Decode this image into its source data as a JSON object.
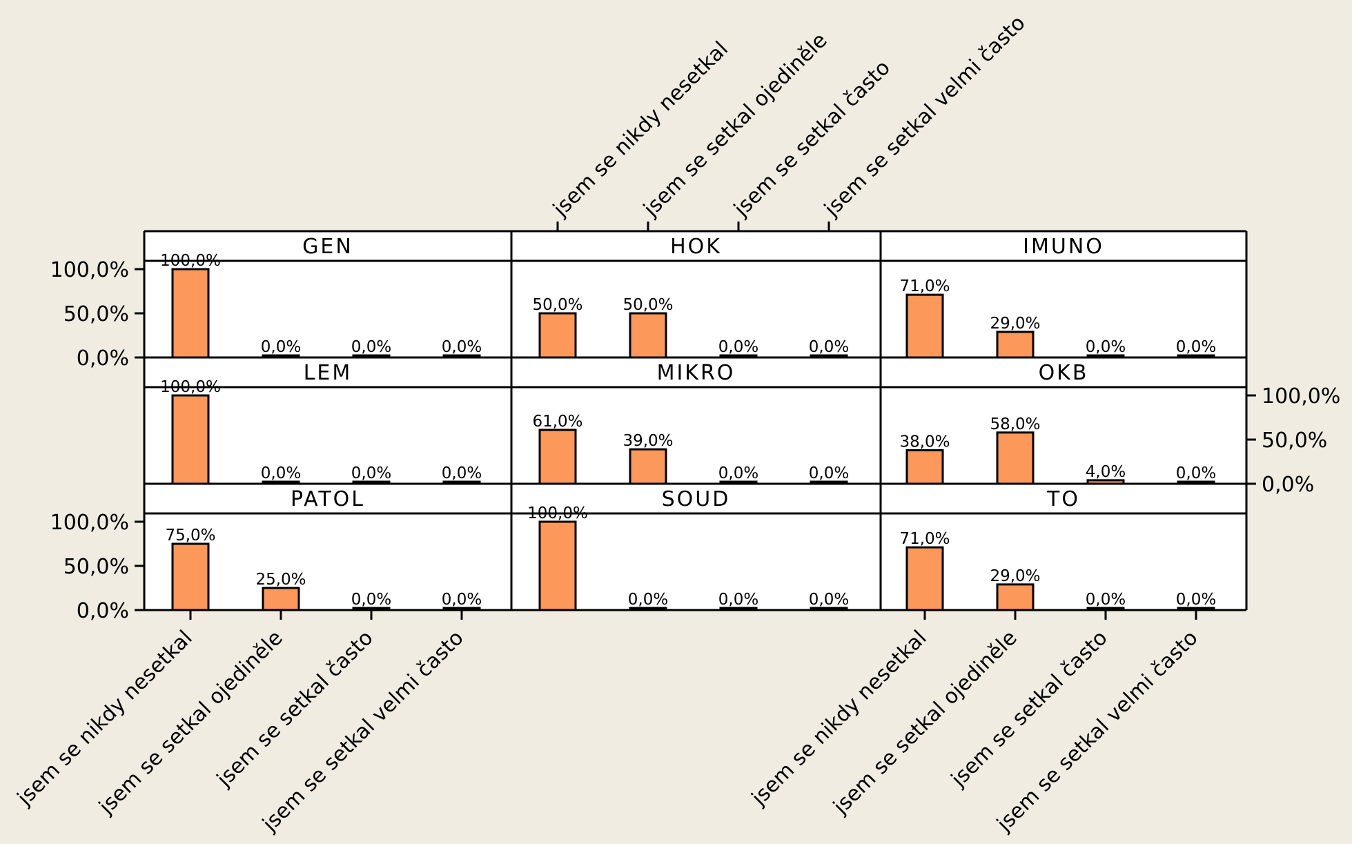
{
  "colors": {
    "background": "#f0ece2",
    "bar": "#fc9859",
    "frame": "#000000",
    "panel": "#ffffff"
  },
  "chart_data": {
    "type": "bar",
    "layout": "trellis 3x3 panels",
    "categories": [
      "jsem se nikdy nesetkal",
      "jsem se setkal ojediněle",
      "jsem se setkal často",
      "jsem se setkal velmi často"
    ],
    "yticks": [
      "0,0%",
      "50,0%",
      "100,0%"
    ],
    "ylim": [
      0,
      100
    ],
    "panels": [
      {
        "title": "GEN",
        "values": [
          100,
          0,
          0,
          0
        ],
        "labels": [
          "100,0%",
          "0,0%",
          "0,0%",
          "0,0%"
        ]
      },
      {
        "title": "HOK",
        "values": [
          50,
          50,
          0,
          0
        ],
        "labels": [
          "50,0%",
          "50,0%",
          "0,0%",
          "0,0%"
        ]
      },
      {
        "title": "IMUNO",
        "values": [
          71,
          29,
          0,
          0
        ],
        "labels": [
          "71,0%",
          "29,0%",
          "0,0%",
          "0,0%"
        ]
      },
      {
        "title": "LEM",
        "values": [
          100,
          0,
          0,
          0
        ],
        "labels": [
          "100,0%",
          "0,0%",
          "0,0%",
          "0,0%"
        ]
      },
      {
        "title": "MIKRO",
        "values": [
          61,
          39,
          0,
          0
        ],
        "labels": [
          "61,0%",
          "39,0%",
          "0,0%",
          "0,0%"
        ]
      },
      {
        "title": "OKB",
        "values": [
          38,
          58,
          4,
          0
        ],
        "labels": [
          "38,0%",
          "58,0%",
          "4,0%",
          "0,0%"
        ]
      },
      {
        "title": "PATOL",
        "values": [
          75,
          25,
          0,
          0
        ],
        "labels": [
          "75,0%",
          "25,0%",
          "0,0%",
          "0,0%"
        ]
      },
      {
        "title": "SOUD",
        "values": [
          100,
          0,
          0,
          0
        ],
        "labels": [
          "100,0%",
          "0,0%",
          "0,0%",
          "0,0%"
        ]
      },
      {
        "title": "TO",
        "values": [
          71,
          29,
          0,
          0
        ],
        "labels": [
          "71,0%",
          "29,0%",
          "0,0%",
          "0,0%"
        ]
      }
    ]
  }
}
